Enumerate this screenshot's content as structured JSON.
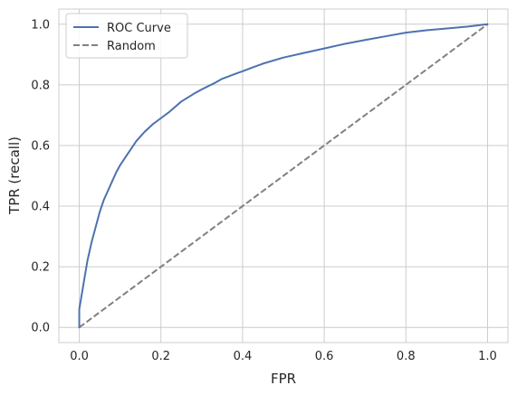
{
  "chart_data": {
    "type": "line",
    "title": "",
    "xlabel": "FPR",
    "ylabel": "TPR (recall)",
    "xlim": [
      -0.05,
      1.05
    ],
    "ylim": [
      -0.05,
      1.05
    ],
    "x_ticks": [
      0.0,
      0.2,
      0.4,
      0.6,
      0.8,
      1.0
    ],
    "y_ticks": [
      0.0,
      0.2,
      0.4,
      0.6,
      0.8,
      1.0
    ],
    "tick_labels": [
      "0.0",
      "0.2",
      "0.4",
      "0.6",
      "0.8",
      "1.0"
    ],
    "grid": true,
    "legend_position": "top-left",
    "series": [
      {
        "name": "ROC Curve",
        "color": "#4c72b0",
        "style": "solid",
        "x": [
          0.0,
          0.0,
          0.01,
          0.02,
          0.03,
          0.04,
          0.05,
          0.06,
          0.07,
          0.08,
          0.09,
          0.1,
          0.12,
          0.14,
          0.16,
          0.18,
          0.2,
          0.22,
          0.25,
          0.28,
          0.3,
          0.33,
          0.35,
          0.38,
          0.4,
          0.43,
          0.45,
          0.5,
          0.55,
          0.6,
          0.65,
          0.7,
          0.75,
          0.8,
          0.85,
          0.9,
          0.95,
          1.0
        ],
        "y": [
          0.0,
          0.06,
          0.14,
          0.22,
          0.28,
          0.33,
          0.38,
          0.42,
          0.45,
          0.48,
          0.51,
          0.535,
          0.575,
          0.615,
          0.645,
          0.67,
          0.69,
          0.71,
          0.745,
          0.77,
          0.785,
          0.805,
          0.82,
          0.835,
          0.845,
          0.86,
          0.87,
          0.89,
          0.905,
          0.92,
          0.935,
          0.948,
          0.96,
          0.972,
          0.98,
          0.986,
          0.992,
          1.0
        ]
      },
      {
        "name": "Random",
        "color": "#808080",
        "style": "dashed",
        "x": [
          0.0,
          1.0
        ],
        "y": [
          0.0,
          1.0
        ]
      }
    ]
  }
}
